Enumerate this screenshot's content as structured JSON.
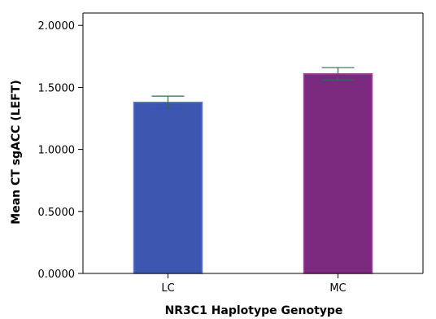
{
  "chart_data": {
    "type": "bar",
    "categories": [
      "LC",
      "MC"
    ],
    "values": [
      1.38,
      1.61
    ],
    "error_bars": [
      {
        "low": 1.33,
        "high": 1.43
      },
      {
        "low": 1.56,
        "high": 1.66
      }
    ],
    "colors": [
      "#3d56b0",
      "#7b2a7f"
    ],
    "error_color": "#2e6b4f",
    "title": "",
    "xlabel": "NR3C1 Haplotype Genotype",
    "ylabel": "Mean CT sgACC (LEFT)",
    "ylim": [
      0,
      2.1
    ],
    "yticks": [
      "0.0000",
      "0.5000",
      "1.0000",
      "1.5000",
      "2.0000"
    ],
    "ytick_values": [
      0,
      0.5,
      1.0,
      1.5,
      2.0
    ],
    "grid": false
  }
}
